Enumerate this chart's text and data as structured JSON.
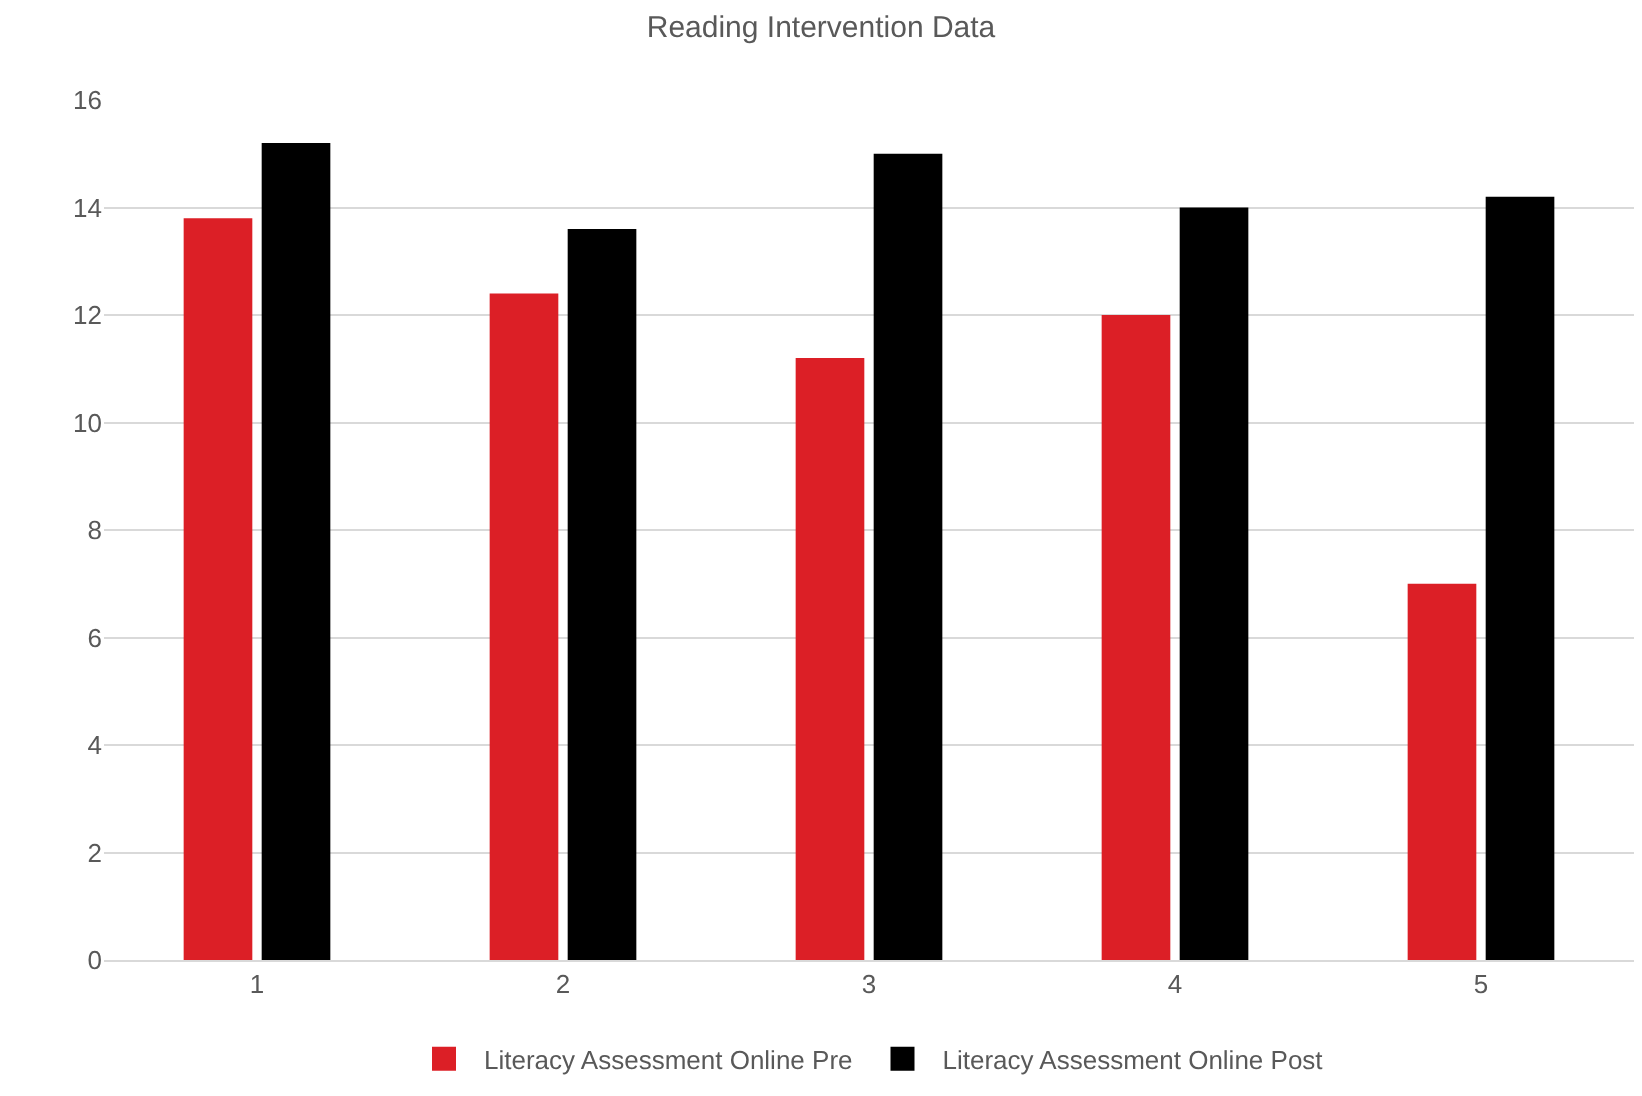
{
  "chart_data": {
    "type": "bar",
    "title": "Reading Intervention Data",
    "categories": [
      "1",
      "2",
      "3",
      "4",
      "5"
    ],
    "series": [
      {
        "name": "Literacy Assessment Online Pre",
        "color": "#dc1f26",
        "values": [
          13.8,
          12.4,
          11.2,
          12.0,
          7.0
        ]
      },
      {
        "name": "Literacy Assessment Online Post",
        "color": "#000000",
        "values": [
          15.2,
          13.6,
          15.0,
          14.0,
          14.2
        ]
      }
    ],
    "ylim": [
      0,
      16
    ],
    "yticks": [
      0,
      2,
      4,
      6,
      8,
      10,
      12,
      14,
      16
    ],
    "grid": "y",
    "legend": "bottom"
  }
}
